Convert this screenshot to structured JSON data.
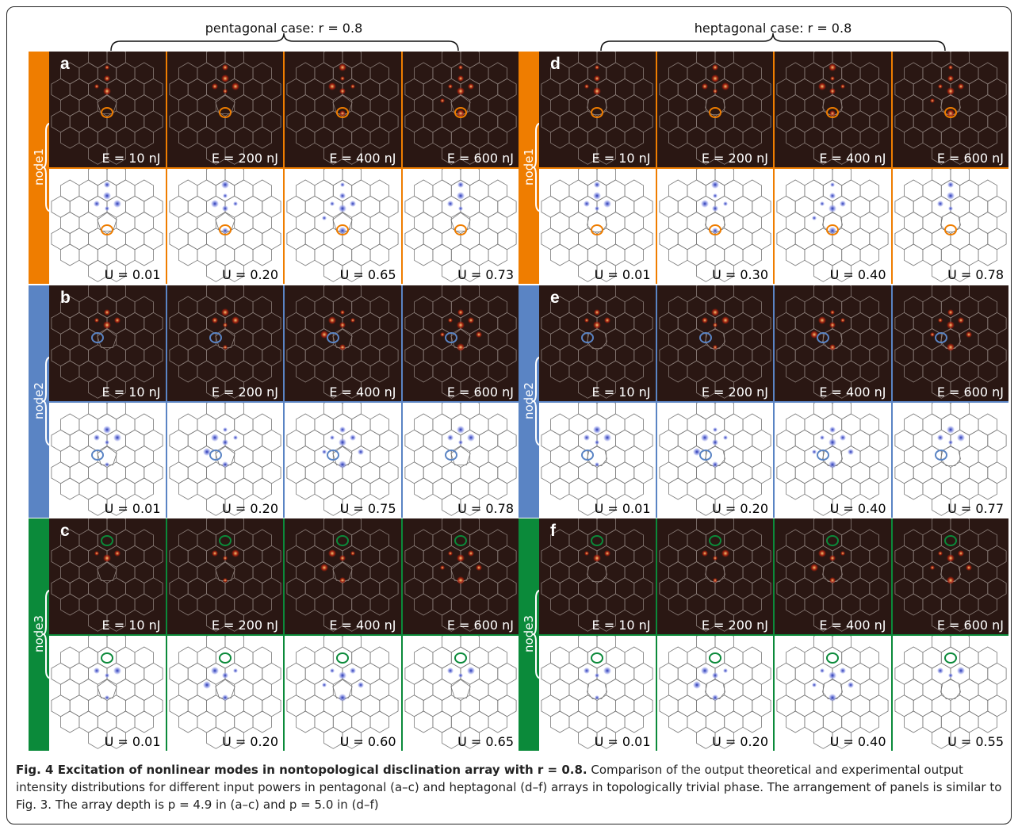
{
  "headers": [
    "pentagonal case: r = 0.8",
    "heptagonal case: r = 0.8"
  ],
  "panels": [
    {
      "letter": "a",
      "node": "node1",
      "color": "#ef7d00",
      "energies": [
        "E = 10 nJ",
        "E = 200 nJ",
        "E = 400 nJ",
        "E = 600 nJ"
      ],
      "u": [
        "U = 0.01",
        "U = 0.20",
        "U = 0.65",
        "U = 0.73"
      ]
    },
    {
      "letter": "b",
      "node": "node2",
      "color": "#5a84c4",
      "energies": [
        "E = 10 nJ",
        "E = 200 nJ",
        "E = 400 nJ",
        "E = 600 nJ"
      ],
      "u": [
        "U = 0.01",
        "U = 0.20",
        "U = 0.75",
        "U = 0.78"
      ]
    },
    {
      "letter": "c",
      "node": "node3",
      "color": "#0b8a3a",
      "energies": [
        "E = 10 nJ",
        "E = 200 nJ",
        "E = 400 nJ",
        "E = 600 nJ"
      ],
      "u": [
        "U = 0.01",
        "U = 0.20",
        "U = 0.60",
        "U = 0.65"
      ]
    },
    {
      "letter": "d",
      "node": "node1",
      "color": "#ef7d00",
      "energies": [
        "E = 10 nJ",
        "E = 200 nJ",
        "E = 400 nJ",
        "E = 600 nJ"
      ],
      "u": [
        "U = 0.01",
        "U = 0.30",
        "U = 0.40",
        "U = 0.78"
      ]
    },
    {
      "letter": "e",
      "node": "node2",
      "color": "#5a84c4",
      "energies": [
        "E = 10 nJ",
        "E = 200 nJ",
        "E = 400 nJ",
        "E = 600 nJ"
      ],
      "u": [
        "U = 0.01",
        "U = 0.20",
        "U = 0.40",
        "U = 0.77"
      ]
    },
    {
      "letter": "f",
      "node": "node3",
      "color": "#0b8a3a",
      "energies": [
        "E = 10 nJ",
        "E = 200 nJ",
        "E = 400 nJ",
        "E = 600 nJ"
      ],
      "u": [
        "U = 0.01",
        "U = 0.20",
        "U = 0.40",
        "U = 0.55"
      ]
    }
  ],
  "caption": {
    "title": "Fig. 4 Excitation of nonlinear modes in nontopological disclination array with r = 0.8.",
    "text": "Comparison of the output theoretical and experimental output intensity distributions for different input powers in pentagonal (a–c) and heptagonal (d–f) arrays in topologically trivial phase. The arrangement of panels is similar to Fig. 3. The array depth is p = 4.9 in (a–c) and p = 5.0 in (d–f)"
  }
}
